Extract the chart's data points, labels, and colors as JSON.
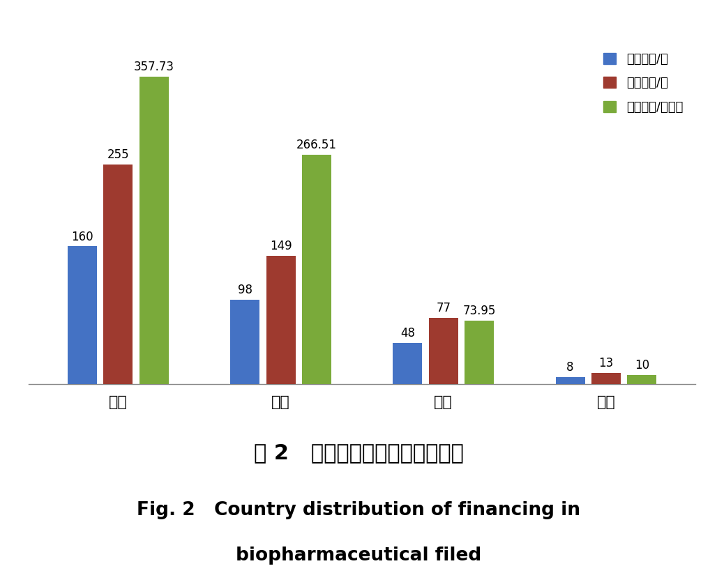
{
  "categories": [
    "美国",
    "中国",
    "欧洲",
    "其他"
  ],
  "series": {
    "融资企业/家": [
      160,
      98,
      48,
      8
    ],
    "融资事件/次": [
      255,
      149,
      77,
      13
    ],
    "融资金额/亿美元": [
      357.73,
      266.51,
      73.95,
      10
    ]
  },
  "bar_colors": {
    "融资企业/家": "#4472c4",
    "融资事件/次": "#9e3a2f",
    "融资金额/亿美元": "#7aaa3a"
  },
  "bar_labels": {
    "融资企业/家": [
      "160",
      "98",
      "48",
      "8"
    ],
    "融资事件/次": [
      "255",
      "149",
      "77",
      "13"
    ],
    "融资金额/亿美元": [
      "357.73",
      "266.51",
      "73.95",
      "10"
    ]
  },
  "ylim": [
    0,
    400
  ],
  "caption_cn": "图 2   生物制药领域融资区域分布",
  "caption_en_line1": "Fig. 2   Country distribution of financing in",
  "caption_en_line2": "biopharmaceutical filed",
  "background_color": "#ffffff",
  "bar_width": 0.18
}
